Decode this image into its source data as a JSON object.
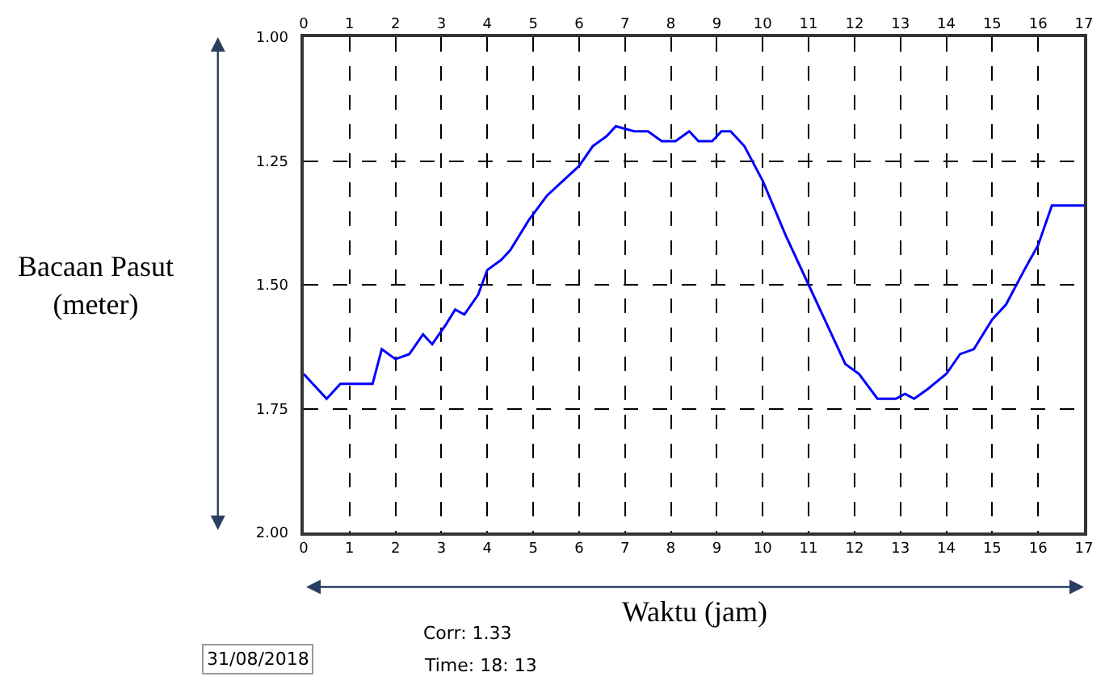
{
  "chart_data": {
    "type": "line",
    "xlabel": "Waktu (jam)",
    "ylabel": "Bacaan Pasut\n(meter)",
    "x": [
      0,
      0.5,
      0.8,
      1.5,
      1.7,
      2.0,
      2.3,
      2.6,
      2.8,
      3.1,
      3.3,
      3.5,
      3.8,
      4.0,
      4.3,
      4.5,
      4.9,
      5.3,
      6.0,
      6.3,
      6.6,
      6.8,
      7.2,
      7.5,
      7.8,
      8.1,
      8.4,
      8.6,
      8.9,
      9.1,
      9.3,
      9.6,
      10.0,
      10.5,
      11.0,
      11.5,
      11.8,
      12.1,
      12.5,
      12.9,
      13.1,
      13.3,
      13.6,
      14.0,
      14.3,
      14.6,
      15.0,
      15.3,
      15.7,
      16.0,
      16.3,
      17.0
    ],
    "series": [
      {
        "color": "#0000ff",
        "values": [
          1.68,
          1.73,
          1.7,
          1.7,
          1.63,
          1.65,
          1.64,
          1.6,
          1.62,
          1.58,
          1.55,
          1.56,
          1.52,
          1.47,
          1.45,
          1.43,
          1.37,
          1.32,
          1.26,
          1.22,
          1.2,
          1.18,
          1.19,
          1.19,
          1.21,
          1.21,
          1.19,
          1.21,
          1.21,
          1.19,
          1.19,
          1.22,
          1.29,
          1.4,
          1.5,
          1.6,
          1.66,
          1.68,
          1.73,
          1.73,
          1.72,
          1.73,
          1.71,
          1.68,
          1.64,
          1.63,
          1.57,
          1.54,
          1.47,
          1.42,
          1.34,
          1.34
        ]
      }
    ],
    "xlim": [
      0,
      17
    ],
    "xticks": [
      0,
      1,
      2,
      3,
      4,
      5,
      6,
      7,
      8,
      9,
      10,
      11,
      12,
      13,
      14,
      15,
      16,
      17
    ],
    "x2lim": [
      0,
      17
    ],
    "x2ticks": [
      0,
      1,
      2,
      3,
      4,
      5,
      6,
      7,
      8,
      9,
      10,
      11,
      12,
      13,
      14,
      15,
      16,
      17
    ],
    "ylim": [
      2.0,
      1.0
    ],
    "yticks": [
      {
        "value": 1.0,
        "label": "1.00"
      },
      {
        "value": 1.25,
        "label": "1.25"
      },
      {
        "value": 1.5,
        "label": "1.50"
      },
      {
        "value": 1.75,
        "label": "1.75"
      },
      {
        "value": 2.0,
        "label": "2.00"
      }
    ],
    "grid": true,
    "marker": "none",
    "line_style": "solid",
    "annotations": [
      "31/08/2018",
      "Corr: 1.33",
      "Time: 18: 13"
    ]
  }
}
